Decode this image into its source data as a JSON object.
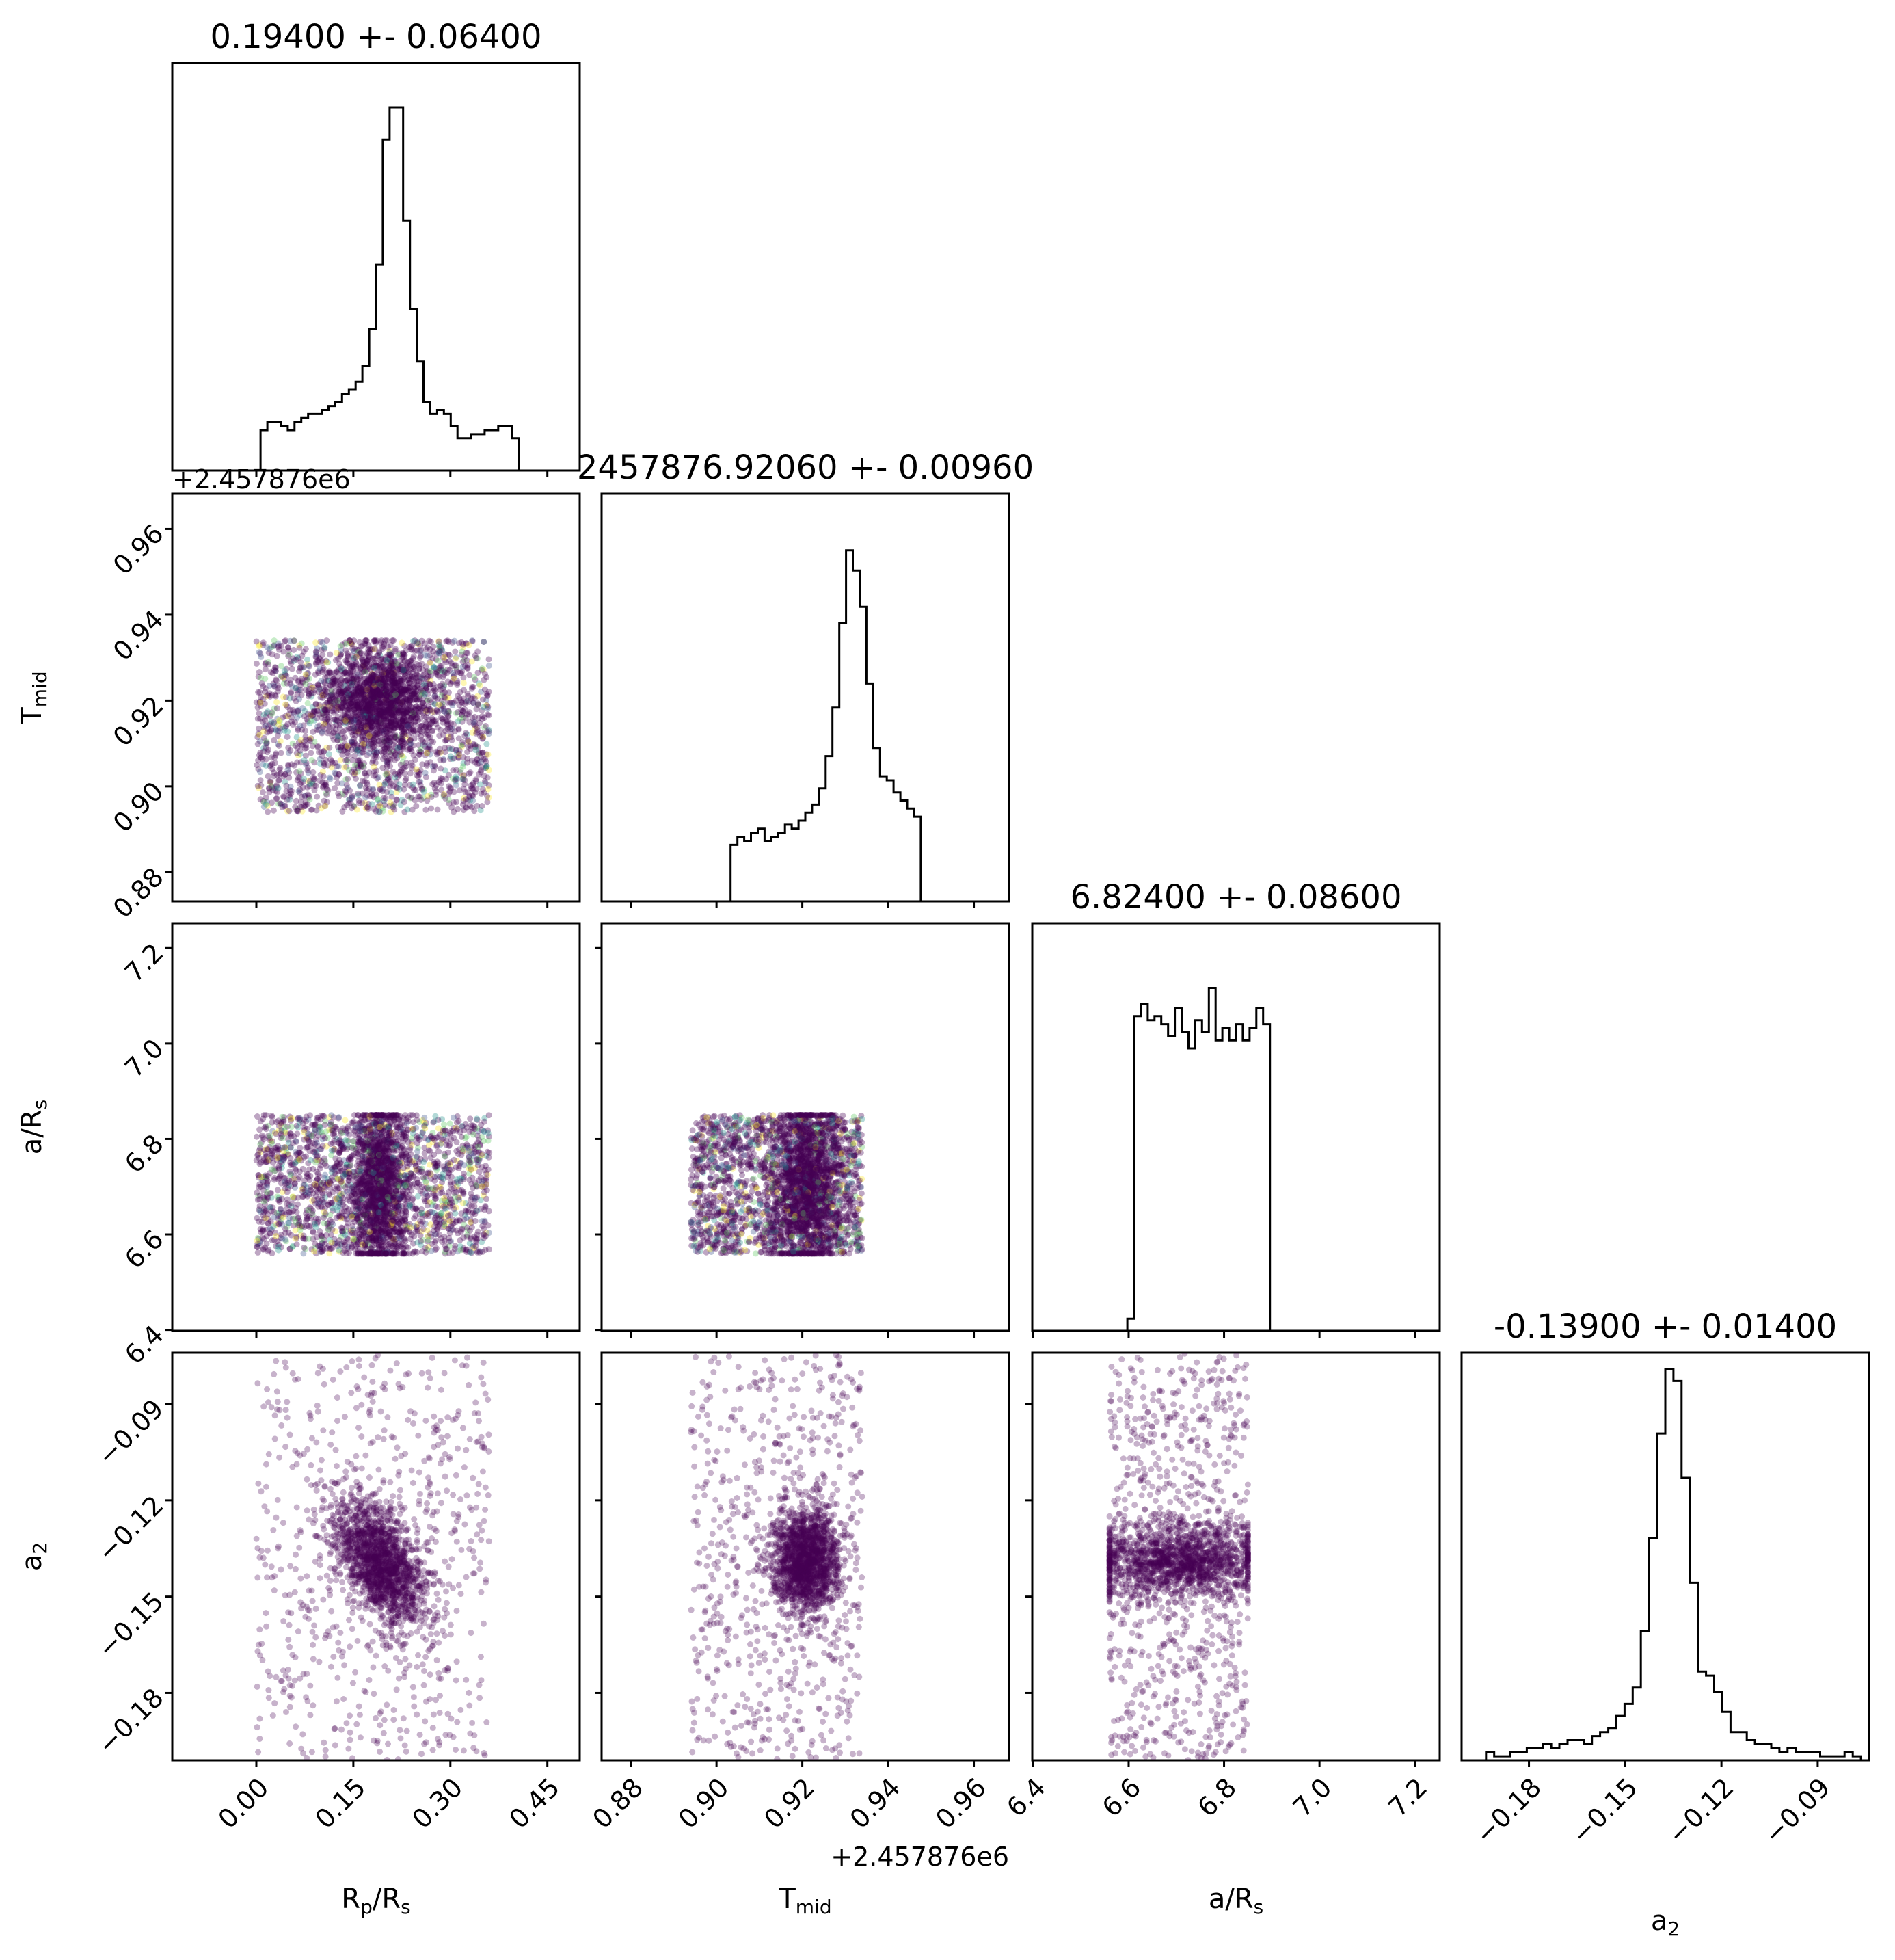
{
  "chart_data": {
    "type": "scatter",
    "kind": "corner-plot",
    "colors": {
      "points": "#440154",
      "frame": "#000000"
    },
    "parameters": [
      {
        "key": "rp",
        "label": "R",
        "label_sub": "p",
        "label_rest": "/R",
        "label_sub2": "s",
        "range": [
          -0.13,
          0.5
        ],
        "ticks": [
          "0.00",
          "0.15",
          "0.30",
          "0.45"
        ],
        "tick_values": [
          0,
          0.15,
          0.3,
          0.45
        ],
        "title": "0.19400 +- 0.06400",
        "hist": [
          0,
          0,
          0,
          0,
          0,
          0,
          0,
          0,
          0,
          0,
          0,
          0,
          0,
          0.1,
          0.12,
          0.12,
          0.11,
          0.1,
          0.12,
          0.13,
          0.14,
          0.14,
          0.15,
          0.16,
          0.17,
          0.19,
          0.2,
          0.22,
          0.26,
          0.35,
          0.51,
          0.82,
          0.9,
          0.9,
          0.62,
          0.4,
          0.27,
          0.17,
          0.14,
          0.15,
          0.14,
          0.11,
          0.08,
          0.08,
          0.09,
          0.09,
          0.1,
          0.1,
          0.11,
          0.11,
          0.08,
          0,
          0,
          0,
          0,
          0,
          0,
          0,
          0,
          0
        ]
      },
      {
        "key": "tmid",
        "label": "T",
        "label_sub": "mid",
        "label_rest": "",
        "label_sub2": "",
        "range": [
          0.8732,
          0.9682
        ],
        "ticks": [
          "0.88",
          "0.90",
          "0.92",
          "0.94",
          "0.96"
        ],
        "tick_values": [
          0.88,
          0.9,
          0.92,
          0.94,
          0.96
        ],
        "offset": "+2.457876e6",
        "title": "2457876.92060 +- 0.00960",
        "hist": [
          0,
          0,
          0,
          0,
          0,
          0,
          0,
          0,
          0,
          0,
          0,
          0,
          0,
          0,
          0,
          0,
          0,
          0,
          0,
          0.14,
          0.16,
          0.15,
          0.17,
          0.18,
          0.15,
          0.16,
          0.17,
          0.19,
          0.18,
          0.2,
          0.22,
          0.24,
          0.28,
          0.36,
          0.48,
          0.69,
          0.87,
          0.82,
          0.73,
          0.54,
          0.38,
          0.31,
          0.3,
          0.27,
          0.25,
          0.23,
          0.21,
          0,
          0,
          0,
          0,
          0,
          0,
          0,
          0,
          0,
          0,
          0,
          0,
          0
        ]
      },
      {
        "key": "ars",
        "label": "a/R",
        "label_sub": "",
        "label_rest": "",
        "label_sub2": "s",
        "range": [
          6.398,
          7.252
        ],
        "ticks": [
          "6.4",
          "6.6",
          "6.8",
          "7.0",
          "7.2"
        ],
        "tick_values": [
          6.4,
          6.6,
          6.8,
          7.0,
          7.2
        ],
        "title": "6.82400 +- 0.08600",
        "hist": [
          0,
          0,
          0,
          0,
          0,
          0,
          0,
          0,
          0,
          0,
          0,
          0,
          0,
          0,
          0.03,
          0.78,
          0.81,
          0.77,
          0.78,
          0.76,
          0.73,
          0.8,
          0.74,
          0.7,
          0.77,
          0.74,
          0.85,
          0.72,
          0.75,
          0.72,
          0.76,
          0.72,
          0.75,
          0.8,
          0.76,
          0,
          0,
          0,
          0,
          0,
          0,
          0,
          0,
          0,
          0,
          0,
          0,
          0,
          0,
          0,
          0,
          0,
          0,
          0,
          0,
          0,
          0,
          0,
          0,
          0
        ]
      },
      {
        "key": "a2",
        "label": "a",
        "label_sub": "2",
        "label_rest": "",
        "label_sub2": "",
        "range": [
          -0.201,
          -0.074
        ],
        "ticks": [
          "−0.18",
          "−0.15",
          "−0.12",
          "−0.09"
        ],
        "tick_values": [
          -0.18,
          -0.15,
          -0.12,
          -0.09
        ],
        "title": "-0.13900 +- 0.01400",
        "hist": [
          0,
          0,
          0,
          0.02,
          0.01,
          0.01,
          0.02,
          0.02,
          0.03,
          0.03,
          0.04,
          0.03,
          0.04,
          0.05,
          0.05,
          0.04,
          0.06,
          0.07,
          0.08,
          0.11,
          0.14,
          0.18,
          0.32,
          0.55,
          0.81,
          0.97,
          0.94,
          0.7,
          0.44,
          0.22,
          0.21,
          0.17,
          0.12,
          0.07,
          0.07,
          0.05,
          0.04,
          0.04,
          0.03,
          0.02,
          0.03,
          0.02,
          0.02,
          0.02,
          0.01,
          0.01,
          0.01,
          0.02,
          0.01,
          0.0
        ]
      }
    ],
    "pairs": [
      {
        "row": 1,
        "col": 0,
        "x_center": 0.19,
        "x_sd": 0.04,
        "y_center": 0.92,
        "y_sd": 0.006,
        "uniform_frac": 0.55,
        "x_uniform": [
          0.0,
          0.36
        ],
        "y_uniform": [
          0.894,
          0.934
        ],
        "density": "high"
      },
      {
        "row": 2,
        "col": 0,
        "x_center": 0.19,
        "x_sd": 0.02,
        "y_center": 6.7,
        "y_sd": 0.09,
        "uniform_frac": 0.6,
        "x_uniform": [
          0.0,
          0.36
        ],
        "y_uniform": [
          6.56,
          6.85
        ],
        "density": "high"
      },
      {
        "row": 2,
        "col": 1,
        "x_center": 0.921,
        "x_sd": 0.004,
        "y_center": 6.7,
        "y_sd": 0.09,
        "uniform_frac": 0.55,
        "x_uniform": [
          0.894,
          0.934
        ],
        "y_uniform": [
          6.56,
          6.85
        ],
        "density": "high"
      },
      {
        "row": 3,
        "col": 0,
        "x_center": 0.19,
        "x_sd": 0.035,
        "y_center": -0.139,
        "y_sd": 0.01,
        "uniform_frac": 0.3,
        "x_uniform": [
          0.0,
          0.36
        ],
        "y_uniform": [
          -0.201,
          -0.074
        ],
        "density": "low",
        "corr": 0.5
      },
      {
        "row": 3,
        "col": 1,
        "x_center": 0.921,
        "x_sd": 0.004,
        "y_center": -0.139,
        "y_sd": 0.008,
        "uniform_frac": 0.3,
        "x_uniform": [
          0.894,
          0.934
        ],
        "y_uniform": [
          -0.201,
          -0.074
        ],
        "density": "low"
      },
      {
        "row": 3,
        "col": 2,
        "x_center": 6.7,
        "x_sd": 0.09,
        "y_center": -0.139,
        "y_sd": 0.006,
        "uniform_frac": 0.35,
        "x_uniform": [
          6.56,
          6.85
        ],
        "y_uniform": [
          -0.201,
          -0.074
        ],
        "density": "low",
        "x_clip": [
          6.56,
          6.85
        ]
      }
    ],
    "offset_labels": {
      "rp_column_y": "+2.457876e6",
      "tmid_x": "+2.457876e6"
    }
  }
}
